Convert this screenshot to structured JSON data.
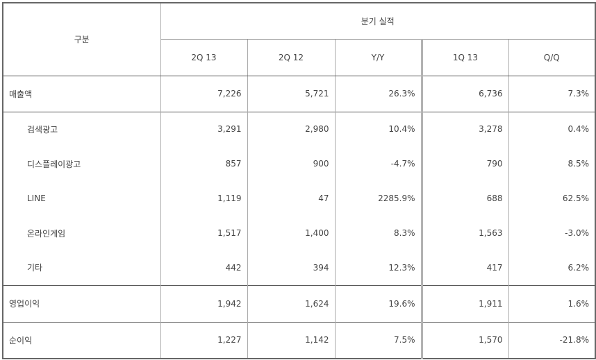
{
  "header": {
    "category": "구분",
    "group": "분기 실적",
    "columns": [
      "2Q 13",
      "2Q 12",
      "Y/Y",
      "1Q 13",
      "Q/Q"
    ]
  },
  "table": {
    "rows": [
      [
        "매출액",
        "7,226",
        "5,721",
        "26.3%",
        "6,736",
        "7.3%"
      ],
      [
        "검색광고",
        "3,291",
        "2,980",
        "10.4%",
        "3,278",
        "0.4%"
      ],
      [
        "디스플레이광고",
        "857",
        "900",
        "-4.7%",
        "790",
        "8.5%"
      ],
      [
        "LINE",
        "1,119",
        "47",
        "2285.9%",
        "688",
        "62.5%"
      ],
      [
        "온라인게임",
        "1,517",
        "1,400",
        "8.3%",
        "1,563",
        "-3.0%"
      ],
      [
        "기타",
        "442",
        "394",
        "12.3%",
        "417",
        "6.2%"
      ],
      [
        "영업이익",
        "1,942",
        "1,624",
        "19.6%",
        "1,911",
        "1.6%"
      ],
      [
        "순이익",
        "1,227",
        "1,142",
        "7.5%",
        "1,570",
        "-21.8%"
      ]
    ]
  }
}
